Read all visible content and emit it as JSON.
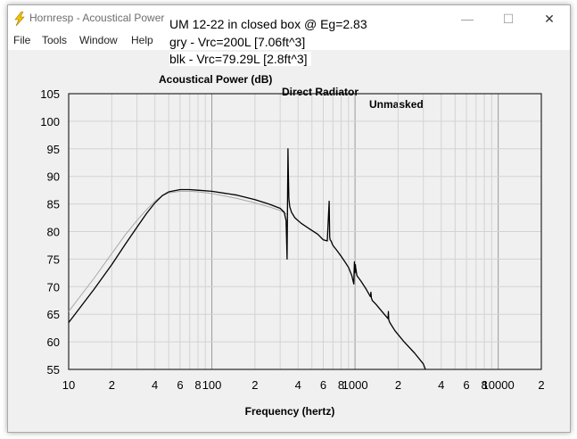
{
  "window": {
    "title": "Hornresp - Acoustical Power",
    "controls": {
      "minimize": "—",
      "maximize": "☐",
      "close": "✕"
    }
  },
  "menu": {
    "items": [
      "File",
      "Tools",
      "Window",
      "Help"
    ]
  },
  "overlay": {
    "line1": "UM 12-22 in closed box @ Eg=2.83",
    "line2": "gry - Vrc=200L [7.06ft^3]",
    "line3": "blk - Vrc=79.29L [2.8ft^3]"
  },
  "chart_title_parts": [
    "Acoustical Power (dB)",
    "Direct Radiator",
    "Unmasked"
  ],
  "chart_data": {
    "type": "line",
    "xlabel": "Frequency (hertz)",
    "ylabel": "",
    "x_scale": "log",
    "xlim": [
      10,
      20000
    ],
    "ylim": [
      55,
      105
    ],
    "grid": true,
    "y_ticks": [
      55,
      60,
      65,
      70,
      75,
      80,
      85,
      90,
      95,
      100,
      105
    ],
    "x_tick_labels": [
      {
        "x": 10,
        "label": "10"
      },
      {
        "x": 20,
        "label": "2"
      },
      {
        "x": 40,
        "label": "4"
      },
      {
        "x": 60,
        "label": "6"
      },
      {
        "x": 80,
        "label": "8"
      },
      {
        "x": 100,
        "label": "100"
      },
      {
        "x": 200,
        "label": "2"
      },
      {
        "x": 400,
        "label": "4"
      },
      {
        "x": 600,
        "label": "6"
      },
      {
        "x": 800,
        "label": "8"
      },
      {
        "x": 1000,
        "label": "1000"
      },
      {
        "x": 2000,
        "label": "2"
      },
      {
        "x": 4000,
        "label": "4"
      },
      {
        "x": 6000,
        "label": "6"
      },
      {
        "x": 8000,
        "label": "8"
      },
      {
        "x": 10000,
        "label": "10000"
      },
      {
        "x": 20000,
        "label": "2"
      }
    ],
    "series": [
      {
        "color": "#a8a8a8",
        "x": [
          10,
          15,
          20,
          25,
          30,
          35,
          40,
          45,
          50,
          60,
          70,
          80,
          100,
          150,
          200,
          250,
          300,
          330,
          340
        ],
        "y": [
          65.5,
          71.5,
          76,
          79.5,
          82,
          84,
          85.5,
          86.5,
          87,
          87.3,
          87.3,
          87.2,
          86.9,
          86,
          85.2,
          84.5,
          83.8,
          83.2,
          83.0
        ]
      },
      {
        "color": "#000000",
        "x": [
          10,
          15,
          20,
          25,
          30,
          35,
          40,
          45,
          50,
          60,
          70,
          80,
          100,
          150,
          200,
          250,
          300,
          320,
          330,
          335,
          338,
          340,
          342,
          345,
          350,
          360,
          380,
          420,
          480,
          550,
          600,
          640,
          660,
          665,
          670,
          680,
          700,
          750,
          800,
          850,
          900,
          950,
          980,
          990,
          995,
          1000,
          1005,
          1010,
          1030,
          1100,
          1200,
          1280,
          1290,
          1300,
          1320,
          1400,
          1600,
          1700,
          1710,
          1720,
          1750,
          1900,
          2200,
          2600,
          3000,
          3100
        ],
        "y": [
          63.5,
          69.5,
          74,
          77.8,
          80.8,
          83.3,
          85.2,
          86.5,
          87.2,
          87.6,
          87.6,
          87.5,
          87.3,
          86.6,
          85.8,
          85,
          84.2,
          83.5,
          82,
          75,
          87,
          95,
          91,
          86,
          84.5,
          83.5,
          82.5,
          81.5,
          80.5,
          79.5,
          78.5,
          78.3,
          85.5,
          79,
          78.5,
          78.3,
          77.5,
          76.5,
          75.5,
          74.5,
          73.5,
          72,
          70.5,
          74.5,
          73,
          72.5,
          74,
          73.5,
          72,
          71,
          69.5,
          68.2,
          69,
          68,
          67.5,
          66.8,
          65,
          64.2,
          65.5,
          64,
          63.5,
          62,
          60,
          58,
          56,
          55
        ]
      }
    ]
  }
}
